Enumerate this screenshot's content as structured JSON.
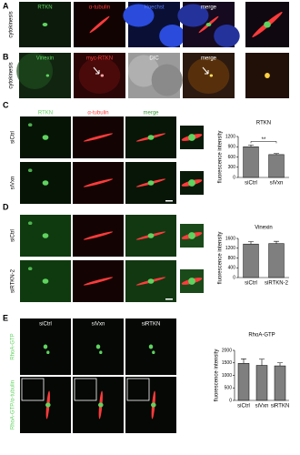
{
  "panels": [
    {
      "letter": "A",
      "side_label": "cytokinesis",
      "image_labels": [
        "RTKN",
        "α-tubulin",
        "Hoechst",
        "merge"
      ]
    },
    {
      "letter": "B",
      "side_label": "cytokinesis",
      "image_labels": [
        "Vinexin",
        "myc-RTKN",
        "DIC",
        "merge"
      ]
    },
    {
      "letter": "C",
      "image_labels": [
        "RTKN",
        "α-tubulin",
        "merge"
      ],
      "row_labels": [
        "siCtrl",
        "siVxn"
      ]
    },
    {
      "letter": "D",
      "image_labels": [
        "Vinexin",
        "α-tubulin",
        "merge"
      ],
      "row_labels": [
        "siCtrl",
        "siRTKN-2"
      ]
    },
    {
      "letter": "E",
      "image_labels": [
        "siCtrl",
        "siVxn",
        "siRTKN"
      ],
      "row_labels": [
        "RhoA-GTP",
        "RhoA-GTP/α-tubulin"
      ]
    }
  ],
  "chart_data": [
    {
      "type": "bar",
      "title": "RTKN",
      "ylabel": "fluorescence intensity",
      "categories": [
        "siCtrl",
        "siVxn"
      ],
      "values": [
        900,
        670
      ],
      "errors": [
        50,
        30
      ],
      "annotation": "**",
      "color": "#7f7f7f",
      "ylim": [
        0,
        1200
      ],
      "yticks": [
        0,
        300,
        600,
        900,
        1200
      ]
    },
    {
      "type": "bar",
      "title": "Vinexin",
      "ylabel": "fluorescence intensity",
      "categories": [
        "siCtrl",
        "siRTKN-2"
      ],
      "values": [
        1370,
        1390
      ],
      "errors": [
        100,
        90
      ],
      "color": "#7f7f7f",
      "ylim": [
        0,
        1600
      ],
      "yticks": [
        0,
        400,
        800,
        1200,
        1600
      ]
    },
    {
      "type": "bar",
      "title": "RhoA-GTP",
      "ylabel": "fluorescence intensity",
      "categories": [
        "siCtrl",
        "siVxn",
        "siRTKN"
      ],
      "values": [
        1480,
        1400,
        1380
      ],
      "errors": [
        180,
        250,
        120
      ],
      "color": "#7f7f7f",
      "ylim": [
        0,
        2000
      ],
      "yticks": [
        0,
        500,
        1000,
        1500,
        2000
      ]
    }
  ]
}
